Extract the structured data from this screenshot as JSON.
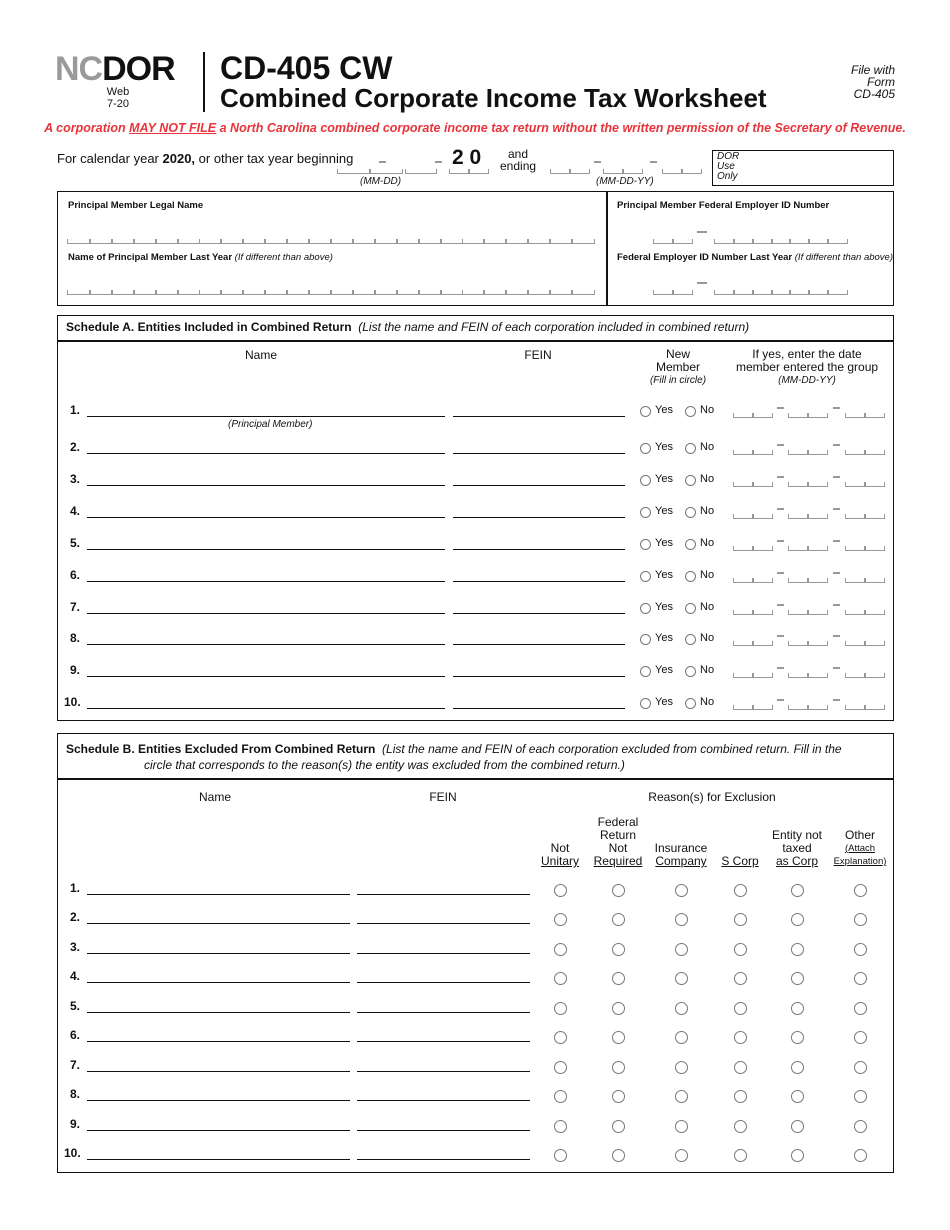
{
  "header": {
    "logo_gray": "NC",
    "logo_dark": "DOR",
    "version_line1": "Web",
    "version_line2": "7-20",
    "form_number": "CD-405 CW",
    "form_title": "Combined Corporate Income Tax Worksheet",
    "file_with": [
      "File with",
      "Form",
      "CD-405"
    ]
  },
  "notice": {
    "before": "A corporation ",
    "emphasis": "MAY NOT FILE",
    "after": " a North Carolina combined corporate income tax return without the written permission of the Secretary of Revenue.",
    "color": "#e8343a"
  },
  "tax_year": {
    "prefix": "For calendar year ",
    "year": "2020,",
    "suffix": " or other tax year beginning",
    "begin_format": "(MM-DD)",
    "year_prefix": "2 0",
    "and": "and",
    "ending": "ending",
    "end_format": "(MM-DD-YY)",
    "dor_use": [
      "DOR",
      "Use",
      "Only"
    ]
  },
  "principal": {
    "legal_name_label": "Principal Member Legal Name",
    "last_year_name_label": "Name of Principal Member Last Year",
    "last_year_name_note": "(If different than above)",
    "fein_label": "Principal Member Federal Employer ID Number",
    "fein_last_label": "Federal Employer ID Number Last Year",
    "fein_last_note": "(If different than above)"
  },
  "schedule_a": {
    "title": "Schedule A.  Entities Included in Combined Return",
    "note": "(List the name and FEIN of each corporation included in combined return)",
    "col_name": "Name",
    "col_fein": "FEIN",
    "col_new": [
      "New",
      "Member"
    ],
    "col_new_note": "(Fill in circle)",
    "col_date": [
      "If yes, enter the date",
      "member entered the group"
    ],
    "col_date_format": "(MM-DD-YY)",
    "principal_note": "(Principal Member)",
    "yes": "Yes",
    "no": "No",
    "rows": [
      "1.",
      "2.",
      "3.",
      "4.",
      "5.",
      "6.",
      "7.",
      "8.",
      "9.",
      "10."
    ]
  },
  "schedule_b": {
    "title": "Schedule B.  Entities Excluded From Combined Return",
    "note_line1": "(List the name and FEIN of each corporation excluded from combined return.  Fill in the",
    "note_line2": "circle that corresponds to the reason(s) the entity was excluded from the combined return.)",
    "col_name": "Name",
    "col_fein": "FEIN",
    "col_reasons": "Reason(s) for Exclusion",
    "reasons": [
      {
        "top": "Not",
        "u": "Unitary"
      },
      {
        "top": "Federal Return Not",
        "u": "Required"
      },
      {
        "top": "Insurance",
        "u": "Company"
      },
      {
        "top": "",
        "u": "S Corp"
      },
      {
        "top": "Entity not taxed",
        "u": "as Corp"
      },
      {
        "top": "Other",
        "u": "(Attach Explanation)"
      }
    ],
    "rows": [
      "1.",
      "2.",
      "3.",
      "4.",
      "5.",
      "6.",
      "7.",
      "8.",
      "9.",
      "10."
    ]
  }
}
